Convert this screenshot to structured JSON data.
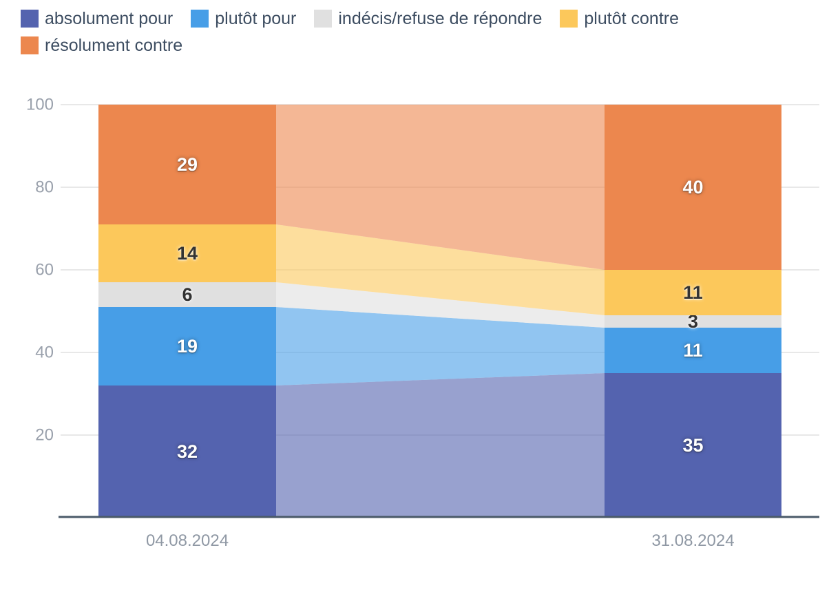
{
  "chart_data": {
    "type": "bar",
    "subtype": "stacked-columns-with-slope-connectors",
    "title": "",
    "categories": [
      "04.08.2024",
      "31.08.2024"
    ],
    "series": [
      {
        "name": "absolument pour",
        "color": "#5463af",
        "values": [
          32,
          35
        ],
        "label_style": "light"
      },
      {
        "name": "plutôt pour",
        "color": "#479ee7",
        "values": [
          19,
          11
        ],
        "label_style": "light"
      },
      {
        "name": "indécis/refuse de répondre",
        "color": "#e0e0e0",
        "values": [
          6,
          3
        ],
        "label_style": "dark"
      },
      {
        "name": "plutôt contre",
        "color": "#fcc85b",
        "values": [
          14,
          11
        ],
        "label_style": "dark"
      },
      {
        "name": "résolument contre",
        "color": "#ec874e",
        "values": [
          29,
          40
        ],
        "label_style": "light"
      }
    ],
    "y_ticks": [
      20,
      40,
      60,
      80,
      100
    ],
    "ylim": [
      0,
      100
    ],
    "grid": true,
    "legend_position": "top",
    "connector_opacity": 0.6
  },
  "colors": {
    "background": "#ffffff",
    "axis_line": "#4a5a68",
    "grid_line": "#e8e8e8",
    "tick_label": "#9aa1ac",
    "x_label": "#8f98a4",
    "legend_text": "#3d4d61"
  }
}
